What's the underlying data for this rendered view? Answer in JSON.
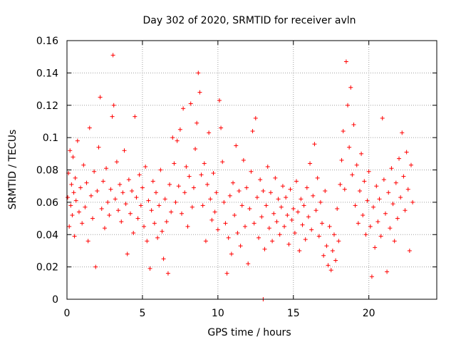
{
  "chart_data": {
    "type": "scatter",
    "title": "Day 302 of 2020, SRMTID for receiver avln",
    "xlabel": "GPS time / hours",
    "ylabel": "SRMTID / TECUs",
    "xlim": [
      0,
      24.5
    ],
    "ylim": [
      0,
      0.16
    ],
    "x_ticks": [
      0,
      5,
      10,
      15,
      20
    ],
    "x_tick_labels": [
      "0",
      "5",
      "10",
      "15",
      "20"
    ],
    "y_ticks": [
      0,
      0.02,
      0.04,
      0.06,
      0.08,
      0.1,
      0.12,
      0.14,
      0.16
    ],
    "y_tick_labels": [
      "0",
      "0.02",
      "0.04",
      "0.06",
      "0.08",
      "0.1",
      "0.12",
      "0.14",
      "0.16"
    ],
    "grid": true,
    "marker": "+",
    "color": "#ff0000",
    "series": [
      {
        "name": "SRMTID",
        "points": [
          [
            0.05,
            0.063
          ],
          [
            0.1,
            0.078
          ],
          [
            0.15,
            0.045
          ],
          [
            0.2,
            0.092
          ],
          [
            0.25,
            0.058
          ],
          [
            0.3,
            0.071
          ],
          [
            0.35,
            0.052
          ],
          [
            0.4,
            0.088
          ],
          [
            0.45,
            0.066
          ],
          [
            0.5,
            0.039
          ],
          [
            0.55,
            0.075
          ],
          [
            0.6,
            0.061
          ],
          [
            0.7,
            0.098
          ],
          [
            0.8,
            0.054
          ],
          [
            0.9,
            0.069
          ],
          [
            1.0,
            0.047
          ],
          [
            1.1,
            0.083
          ],
          [
            1.2,
            0.057
          ],
          [
            1.3,
            0.072
          ],
          [
            1.4,
            0.036
          ],
          [
            1.5,
            0.106
          ],
          [
            1.6,
            0.064
          ],
          [
            1.7,
            0.05
          ],
          [
            1.8,
            0.079
          ],
          [
            1.9,
            0.02
          ],
          [
            2.0,
            0.067
          ],
          [
            2.1,
            0.094
          ],
          [
            2.2,
            0.125
          ],
          [
            2.3,
            0.056
          ],
          [
            2.4,
            0.073
          ],
          [
            2.5,
            0.044
          ],
          [
            2.6,
            0.081
          ],
          [
            2.7,
            0.06
          ],
          [
            2.8,
            0.052
          ],
          [
            2.9,
            0.068
          ],
          [
            3.0,
            0.113
          ],
          [
            3.05,
            0.151
          ],
          [
            3.1,
            0.12
          ],
          [
            3.2,
            0.062
          ],
          [
            3.3,
            0.085
          ],
          [
            3.4,
            0.055
          ],
          [
            3.5,
            0.071
          ],
          [
            3.6,
            0.048
          ],
          [
            3.7,
            0.066
          ],
          [
            3.8,
            0.092
          ],
          [
            3.9,
            0.059
          ],
          [
            4.0,
            0.028
          ],
          [
            4.1,
            0.074
          ],
          [
            4.2,
            0.053
          ],
          [
            4.3,
            0.067
          ],
          [
            4.4,
            0.041
          ],
          [
            4.5,
            0.113
          ],
          [
            4.6,
            0.063
          ],
          [
            4.7,
            0.05
          ],
          [
            4.8,
            0.077
          ],
          [
            4.9,
            0.058
          ],
          [
            5.0,
            0.069
          ],
          [
            5.1,
            0.045
          ],
          [
            5.2,
            0.082
          ],
          [
            5.3,
            0.036
          ],
          [
            5.4,
            0.061
          ],
          [
            5.5,
            0.019
          ],
          [
            5.6,
            0.055
          ],
          [
            5.7,
            0.073
          ],
          [
            5.8,
            0.047
          ],
          [
            5.9,
            0.066
          ],
          [
            6.0,
            0.038
          ],
          [
            6.1,
            0.058
          ],
          [
            6.2,
            0.08
          ],
          [
            6.3,
            0.042
          ],
          [
            6.4,
            0.025
          ],
          [
            6.5,
            0.062
          ],
          [
            6.6,
            0.048
          ],
          [
            6.7,
            0.016
          ],
          [
            6.8,
            0.071
          ],
          [
            6.9,
            0.054
          ],
          [
            7.0,
            0.1
          ],
          [
            7.1,
            0.084
          ],
          [
            7.2,
            0.06
          ],
          [
            7.3,
            0.098
          ],
          [
            7.4,
            0.07
          ],
          [
            7.5,
            0.105
          ],
          [
            7.6,
            0.053
          ],
          [
            7.7,
            0.118
          ],
          [
            7.8,
            0.066
          ],
          [
            7.9,
            0.082
          ],
          [
            8.0,
            0.045
          ],
          [
            8.1,
            0.076
          ],
          [
            8.2,
            0.121
          ],
          [
            8.3,
            0.057
          ],
          [
            8.4,
            0.069
          ],
          [
            8.5,
            0.093
          ],
          [
            8.6,
            0.109
          ],
          [
            8.7,
            0.14
          ],
          [
            8.8,
            0.128
          ],
          [
            8.9,
            0.077
          ],
          [
            9.0,
            0.058
          ],
          [
            9.1,
            0.084
          ],
          [
            9.2,
            0.036
          ],
          [
            9.3,
            0.071
          ],
          [
            9.4,
            0.103
          ],
          [
            9.5,
            0.062
          ],
          [
            9.6,
            0.049
          ],
          [
            9.7,
            0.078
          ],
          [
            9.8,
            0.054
          ],
          [
            9.9,
            0.066
          ],
          [
            10.0,
            0.043
          ],
          [
            10.1,
            0.123
          ],
          [
            10.2,
            0.106
          ],
          [
            10.3,
            0.085
          ],
          [
            10.4,
            0.06
          ],
          [
            10.5,
            0.047
          ],
          [
            10.6,
            0.016
          ],
          [
            10.7,
            0.038
          ],
          [
            10.8,
            0.064
          ],
          [
            10.9,
            0.028
          ],
          [
            11.0,
            0.072
          ],
          [
            11.1,
            0.052
          ],
          [
            11.2,
            0.095
          ],
          [
            11.3,
            0.041
          ],
          [
            11.4,
            0.067
          ],
          [
            11.5,
            0.033
          ],
          [
            11.6,
            0.058
          ],
          [
            11.7,
            0.086
          ],
          [
            11.8,
            0.045
          ],
          [
            11.9,
            0.069
          ],
          [
            12.0,
            0.022
          ],
          [
            12.1,
            0.056
          ],
          [
            12.2,
            0.079
          ],
          [
            12.3,
            0.104
          ],
          [
            12.4,
            0.047
          ],
          [
            12.5,
            0.112
          ],
          [
            12.6,
            0.063
          ],
          [
            12.7,
            0.038
          ],
          [
            12.8,
            0.074
          ],
          [
            12.9,
            0.051
          ],
          [
            13.0,
            0.067
          ],
          [
            13.1,
            0.031
          ],
          [
            13.2,
            0.058
          ],
          [
            13.3,
            0.082
          ],
          [
            13.4,
            0.044
          ],
          [
            13.5,
            0.066
          ],
          [
            13.6,
            0.036
          ],
          [
            13.7,
            0.053
          ],
          [
            13.8,
            0.075
          ],
          [
            13.9,
            0.048
          ],
          [
            14.0,
            0.062
          ],
          [
            14.1,
            0.04
          ],
          [
            14.2,
            0.057
          ],
          [
            14.3,
            0.07
          ],
          [
            14.4,
            0.045
          ],
          [
            14.5,
            0.063
          ],
          [
            14.6,
            0.052
          ],
          [
            14.7,
            0.034
          ],
          [
            14.8,
            0.068
          ],
          [
            14.9,
            0.049
          ],
          [
            15.0,
            0.056
          ],
          [
            15.1,
            0.041
          ],
          [
            15.2,
            0.073
          ],
          [
            15.3,
            0.054
          ],
          [
            15.4,
            0.03
          ],
          [
            15.5,
            0.062
          ],
          [
            15.6,
            0.046
          ],
          [
            15.7,
            0.058
          ],
          [
            15.8,
            0.037
          ],
          [
            15.9,
            0.069
          ],
          [
            16.0,
            0.051
          ],
          [
            16.1,
            0.084
          ],
          [
            16.2,
            0.043
          ],
          [
            16.3,
            0.064
          ],
          [
            16.4,
            0.096
          ],
          [
            16.5,
            0.055
          ],
          [
            16.6,
            0.075
          ],
          [
            16.7,
            0.039
          ],
          [
            16.8,
            0.06
          ],
          [
            16.9,
            0.047
          ],
          [
            17.0,
            0.027
          ],
          [
            17.1,
            0.067
          ],
          [
            17.2,
            0.033
          ],
          [
            17.3,
            0.021
          ],
          [
            17.4,
            0.045
          ],
          [
            17.5,
            0.018
          ],
          [
            17.6,
            0.03
          ],
          [
            17.7,
            0.04
          ],
          [
            17.8,
            0.024
          ],
          [
            17.9,
            0.056
          ],
          [
            18.0,
            0.036
          ],
          [
            18.1,
            0.071
          ],
          [
            18.2,
            0.086
          ],
          [
            18.3,
            0.104
          ],
          [
            18.4,
            0.068
          ],
          [
            18.5,
            0.147
          ],
          [
            18.6,
            0.12
          ],
          [
            18.7,
            0.094
          ],
          [
            18.8,
            0.131
          ],
          [
            18.9,
            0.077
          ],
          [
            19.0,
            0.108
          ],
          [
            19.1,
            0.058
          ],
          [
            19.2,
            0.083
          ],
          [
            19.3,
            0.047
          ],
          [
            19.4,
            0.067
          ],
          [
            19.5,
            0.09
          ],
          [
            19.6,
            0.052
          ],
          [
            19.7,
            0.073
          ],
          [
            19.8,
            0.04
          ],
          [
            19.9,
            0.061
          ],
          [
            20.0,
            0.079
          ],
          [
            20.1,
            0.045
          ],
          [
            20.2,
            0.014
          ],
          [
            20.3,
            0.057
          ],
          [
            20.4,
            0.032
          ],
          [
            20.5,
            0.07
          ],
          [
            20.6,
            0.048
          ],
          [
            20.7,
            0.062
          ],
          [
            20.8,
            0.039
          ],
          [
            20.9,
            0.112
          ],
          [
            21.0,
            0.074
          ],
          [
            21.1,
            0.053
          ],
          [
            21.2,
            0.017
          ],
          [
            21.3,
            0.066
          ],
          [
            21.4,
            0.044
          ],
          [
            21.5,
            0.081
          ],
          [
            21.6,
            0.059
          ],
          [
            21.7,
            0.036
          ],
          [
            21.8,
            0.072
          ],
          [
            21.9,
            0.05
          ],
          [
            22.0,
            0.087
          ],
          [
            22.1,
            0.063
          ],
          [
            22.2,
            0.103
          ],
          [
            22.3,
            0.076
          ],
          [
            22.4,
            0.055
          ],
          [
            22.5,
            0.091
          ],
          [
            22.6,
            0.068
          ],
          [
            22.7,
            0.03
          ],
          [
            22.8,
            0.083
          ],
          [
            22.9,
            0.06
          ],
          [
            13.0,
            0.0
          ]
        ]
      }
    ]
  }
}
